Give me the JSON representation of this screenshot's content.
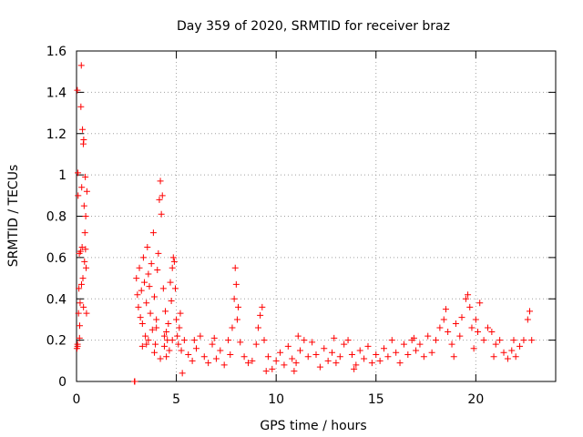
{
  "chart_data": {
    "type": "scatter",
    "title": "Day 359 of 2020, SRMTID for receiver braz",
    "xlabel": "GPS time / hours",
    "ylabel": "SRMTID / TECUs",
    "xlim": [
      0,
      24
    ],
    "ylim": [
      0,
      1.6
    ],
    "xticks": [
      0,
      5,
      10,
      15,
      20
    ],
    "xtick_labels": [
      "0",
      "5",
      "10",
      "15",
      "20"
    ],
    "yticks": [
      0,
      0.2,
      0.4,
      0.6,
      0.8,
      1,
      1.2,
      1.4,
      1.6
    ],
    "ytick_labels": [
      "0",
      "0.2",
      "0.4",
      "0.6",
      "0.8",
      "1",
      "1.2",
      "1.4",
      "1.6"
    ],
    "grid": true,
    "marker": "+",
    "color": "#ff0000",
    "series": [
      {
        "name": "SRMTID",
        "points": [
          [
            0.02,
            0.16
          ],
          [
            0.04,
            1.41
          ],
          [
            0.05,
            0.18
          ],
          [
            0.07,
            1.01
          ],
          [
            0.08,
            0.9
          ],
          [
            0.1,
            0.33
          ],
          [
            0.12,
            0.45
          ],
          [
            0.14,
            0.62
          ],
          [
            0.16,
            0.27
          ],
          [
            0.18,
            0.38
          ],
          [
            0.2,
            0.63
          ],
          [
            0.22,
            1.33
          ],
          [
            0.24,
            1.53
          ],
          [
            0.26,
            0.94
          ],
          [
            0.28,
            0.65
          ],
          [
            0.3,
            1.22
          ],
          [
            0.32,
            0.5
          ],
          [
            0.34,
            1.15
          ],
          [
            0.36,
            1.17
          ],
          [
            0.38,
            0.85
          ],
          [
            0.4,
            0.58
          ],
          [
            0.42,
            0.72
          ],
          [
            0.44,
            0.99
          ],
          [
            0.46,
            0.8
          ],
          [
            0.48,
            0.55
          ],
          [
            0.5,
            0.33
          ],
          [
            0.52,
            0.92
          ],
          [
            0.15,
            0.21
          ],
          [
            0.25,
            0.47
          ],
          [
            0.35,
            0.36
          ],
          [
            0.45,
            0.64
          ],
          [
            0.05,
            0.17
          ],
          [
            2.9,
            0.0
          ],
          [
            2.92,
            0.0
          ],
          [
            3.0,
            0.5
          ],
          [
            3.05,
            0.42
          ],
          [
            3.1,
            0.36
          ],
          [
            3.15,
            0.55
          ],
          [
            3.2,
            0.31
          ],
          [
            3.25,
            0.44
          ],
          [
            3.3,
            0.28
          ],
          [
            3.35,
            0.6
          ],
          [
            3.4,
            0.48
          ],
          [
            3.45,
            0.22
          ],
          [
            3.5,
            0.38
          ],
          [
            3.55,
            0.65
          ],
          [
            3.6,
            0.52
          ],
          [
            3.65,
            0.46
          ],
          [
            3.7,
            0.33
          ],
          [
            3.75,
            0.57
          ],
          [
            3.8,
            0.25
          ],
          [
            3.85,
            0.72
          ],
          [
            3.9,
            0.41
          ],
          [
            3.95,
            0.18
          ],
          [
            4.0,
            0.3
          ],
          [
            4.05,
            0.54
          ],
          [
            4.1,
            0.62
          ],
          [
            4.15,
            0.88
          ],
          [
            4.2,
            0.97
          ],
          [
            4.25,
            0.81
          ],
          [
            4.3,
            0.9
          ],
          [
            4.35,
            0.45
          ],
          [
            4.4,
            0.22
          ],
          [
            4.45,
            0.34
          ],
          [
            4.5,
            0.12
          ],
          [
            4.55,
            0.2
          ],
          [
            4.6,
            0.28
          ],
          [
            4.65,
            0.15
          ],
          [
            4.7,
            0.48
          ],
          [
            4.75,
            0.39
          ],
          [
            4.8,
            0.55
          ],
          [
            4.85,
            0.6
          ],
          [
            4.9,
            0.58
          ],
          [
            4.95,
            0.45
          ],
          [
            5.0,
            0.3
          ],
          [
            5.05,
            0.22
          ],
          [
            5.1,
            0.18
          ],
          [
            5.15,
            0.26
          ],
          [
            5.2,
            0.33
          ],
          [
            5.25,
            0.15
          ],
          [
            5.3,
            0.04
          ],
          [
            3.3,
            0.17
          ],
          [
            3.6,
            0.2
          ],
          [
            3.9,
            0.14
          ],
          [
            4.2,
            0.11
          ],
          [
            4.5,
            0.24
          ],
          [
            4.8,
            0.2
          ],
          [
            3.5,
            0.18
          ],
          [
            4.0,
            0.26
          ],
          [
            4.4,
            0.17
          ],
          [
            5.4,
            0.2
          ],
          [
            5.6,
            0.13
          ],
          [
            5.8,
            0.1
          ],
          [
            6.0,
            0.16
          ],
          [
            6.2,
            0.22
          ],
          [
            6.4,
            0.12
          ],
          [
            6.6,
            0.09
          ],
          [
            6.8,
            0.18
          ],
          [
            7.0,
            0.11
          ],
          [
            7.2,
            0.15
          ],
          [
            7.4,
            0.08
          ],
          [
            7.6,
            0.2
          ],
          [
            7.8,
            0.26
          ],
          [
            7.9,
            0.4
          ],
          [
            7.95,
            0.55
          ],
          [
            8.0,
            0.47
          ],
          [
            8.05,
            0.3
          ],
          [
            8.1,
            0.36
          ],
          [
            8.2,
            0.19
          ],
          [
            8.4,
            0.12
          ],
          [
            8.6,
            0.09
          ],
          [
            8.8,
            0.1
          ],
          [
            9.0,
            0.18
          ],
          [
            9.1,
            0.26
          ],
          [
            9.2,
            0.32
          ],
          [
            9.3,
            0.36
          ],
          [
            9.4,
            0.2
          ],
          [
            9.6,
            0.12
          ],
          [
            9.8,
            0.06
          ],
          [
            10.0,
            0.1
          ],
          [
            10.2,
            0.14
          ],
          [
            10.4,
            0.08
          ],
          [
            10.6,
            0.17
          ],
          [
            10.8,
            0.11
          ],
          [
            11.0,
            0.09
          ],
          [
            11.2,
            0.15
          ],
          [
            11.4,
            0.2
          ],
          [
            11.6,
            0.12
          ],
          [
            11.8,
            0.19
          ],
          [
            12.0,
            0.13
          ],
          [
            12.2,
            0.07
          ],
          [
            12.4,
            0.16
          ],
          [
            12.6,
            0.1
          ],
          [
            12.8,
            0.14
          ],
          [
            13.0,
            0.09
          ],
          [
            13.2,
            0.12
          ],
          [
            13.4,
            0.18
          ],
          [
            13.6,
            0.2
          ],
          [
            13.8,
            0.13
          ],
          [
            14.0,
            0.08
          ],
          [
            14.2,
            0.15
          ],
          [
            14.4,
            0.11
          ],
          [
            14.6,
            0.17
          ],
          [
            14.8,
            0.09
          ],
          [
            15.0,
            0.13
          ],
          [
            15.2,
            0.1
          ],
          [
            15.4,
            0.16
          ],
          [
            15.6,
            0.12
          ],
          [
            15.8,
            0.2
          ],
          [
            16.0,
            0.14
          ],
          [
            16.2,
            0.09
          ],
          [
            16.4,
            0.18
          ],
          [
            16.6,
            0.13
          ],
          [
            16.8,
            0.2
          ],
          [
            17.0,
            0.15
          ],
          [
            17.2,
            0.18
          ],
          [
            17.4,
            0.12
          ],
          [
            17.6,
            0.22
          ],
          [
            17.8,
            0.14
          ],
          [
            18.0,
            0.2
          ],
          [
            18.2,
            0.26
          ],
          [
            18.4,
            0.3
          ],
          [
            18.5,
            0.35
          ],
          [
            18.6,
            0.24
          ],
          [
            18.8,
            0.18
          ],
          [
            19.0,
            0.28
          ],
          [
            19.2,
            0.22
          ],
          [
            19.3,
            0.31
          ],
          [
            19.5,
            0.4
          ],
          [
            19.6,
            0.42
          ],
          [
            19.7,
            0.36
          ],
          [
            19.8,
            0.26
          ],
          [
            20.0,
            0.3
          ],
          [
            20.1,
            0.24
          ],
          [
            20.2,
            0.38
          ],
          [
            20.4,
            0.2
          ],
          [
            20.6,
            0.26
          ],
          [
            20.8,
            0.24
          ],
          [
            21.0,
            0.18
          ],
          [
            21.2,
            0.2
          ],
          [
            21.4,
            0.14
          ],
          [
            21.6,
            0.11
          ],
          [
            21.8,
            0.15
          ],
          [
            22.0,
            0.12
          ],
          [
            22.2,
            0.17
          ],
          [
            22.4,
            0.2
          ],
          [
            22.6,
            0.3
          ],
          [
            22.7,
            0.34
          ],
          [
            22.8,
            0.2
          ],
          [
            5.9,
            0.2
          ],
          [
            6.9,
            0.21
          ],
          [
            9.5,
            0.05
          ],
          [
            11.1,
            0.22
          ],
          [
            12.9,
            0.21
          ],
          [
            16.9,
            0.21
          ],
          [
            18.9,
            0.12
          ],
          [
            20.9,
            0.12
          ],
          [
            21.9,
            0.2
          ],
          [
            7.7,
            0.13
          ],
          [
            10.9,
            0.05
          ],
          [
            13.9,
            0.06
          ],
          [
            19.9,
            0.16
          ]
        ]
      }
    ]
  }
}
